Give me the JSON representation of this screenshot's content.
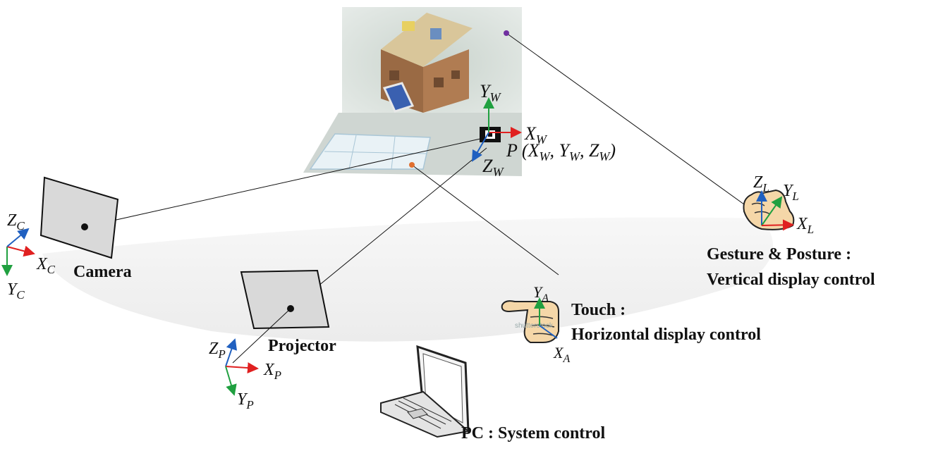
{
  "labels": {
    "camera": "Camera",
    "projector": "Projector",
    "touch_line1": "Touch :",
    "touch_line2": "Horizontal display control",
    "gesture_line1": "Gesture & Posture :",
    "gesture_line2": "Vertical display control",
    "pc": "PC : System control",
    "point": "P (X_W, Y_W, Z_W)",
    "point_prefix": "P (",
    "point_sep": ", ",
    "point_suffix": ")"
  },
  "axes": {
    "world": {
      "x": "X",
      "y": "Y",
      "z": "Z",
      "sub": "W"
    },
    "camera": {
      "x": "X",
      "y": "Y",
      "z": "Z",
      "sub": "C"
    },
    "projector": {
      "x": "X",
      "y": "Y",
      "z": "Z",
      "sub": "P"
    },
    "touch": {
      "x": "X",
      "y": "Y",
      "sub": "A"
    },
    "gesture": {
      "x": "X",
      "y": "Y",
      "z": "Z",
      "sub": "L"
    }
  },
  "watermark": "shutterstock",
  "colors": {
    "x_axis": "#e02020",
    "y_axis": "#20a040",
    "z_axis": "#2060c0",
    "device_fill": "#d9d9d9",
    "band": "#f0f0f0",
    "marker_purple": "#7030a0",
    "marker_orange": "#e07030"
  },
  "icons": [
    "camera-plane-icon",
    "projector-plane-icon",
    "laptop-icon",
    "pointing-hand-icon",
    "gesture-hand-icon",
    "house-model-image"
  ]
}
